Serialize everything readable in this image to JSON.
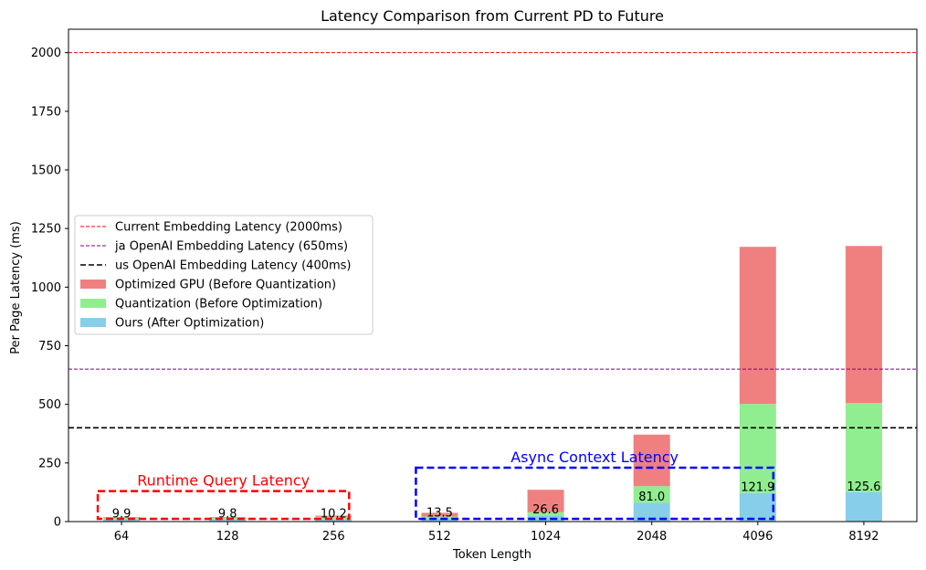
{
  "chart_data": {
    "type": "bar",
    "stacked": true,
    "title": "Latency Comparison from Current PD to Future",
    "xlabel": "Token Length",
    "ylabel": "Per Page Latency (ms)",
    "ylim": [
      0,
      2100
    ],
    "yticks": [
      0,
      250,
      500,
      750,
      1000,
      1250,
      1500,
      1750,
      2000
    ],
    "categories": [
      "64",
      "128",
      "256",
      "512",
      "1024",
      "2048",
      "4096",
      "8192"
    ],
    "series": [
      {
        "name": "Ours (After Optimization)",
        "color": "#87CEEB",
        "values": [
          9.9,
          9.8,
          10.2,
          13.5,
          26.6,
          81.0,
          121.9,
          125.6
        ]
      },
      {
        "name": "Quantization (Before Optimization)",
        "color": "#90EE90",
        "values": [
          6,
          6,
          10,
          8,
          14,
          70,
          380,
          380
        ]
      },
      {
        "name": "Optimized GPU (Before Quantization)",
        "color": "#F08080",
        "values": [
          3,
          3,
          5,
          16,
          95,
          220,
          670,
          670
        ]
      }
    ],
    "bar_labels": [
      "9.9",
      "9.8",
      "10.2",
      "13.5",
      "26.6",
      "81.0",
      "121.9",
      "125.6"
    ],
    "reference_lines": [
      {
        "name": "Current Embedding Latency (2000ms)",
        "value": 2000,
        "color": "#FF0000",
        "style": "dashed-thin"
      },
      {
        "name": "ja OpenAI Embedding Latency (650ms)",
        "value": 650,
        "color": "#800080",
        "style": "dashed-thin"
      },
      {
        "name": "us OpenAI Embedding Latency (400ms)",
        "value": 400,
        "color": "#000000",
        "style": "dashed-thick"
      }
    ],
    "regions": [
      {
        "label": "Runtime Query Latency",
        "color": "#FF0000",
        "from_category": "64",
        "to_category": "256",
        "y_top": 130
      },
      {
        "label": "Async Context Latency",
        "color": "#0000FF",
        "from_category": "512",
        "to_category": "4096",
        "y_top": 230
      }
    ],
    "legend": {
      "position": "center-left",
      "order": [
        "Current Embedding Latency (2000ms)",
        "ja OpenAI Embedding Latency (650ms)",
        "us OpenAI Embedding Latency (400ms)",
        "Optimized GPU (Before Quantization)",
        "Quantization (Before Optimization)",
        "Ours (After Optimization)"
      ]
    },
    "grid": false
  }
}
